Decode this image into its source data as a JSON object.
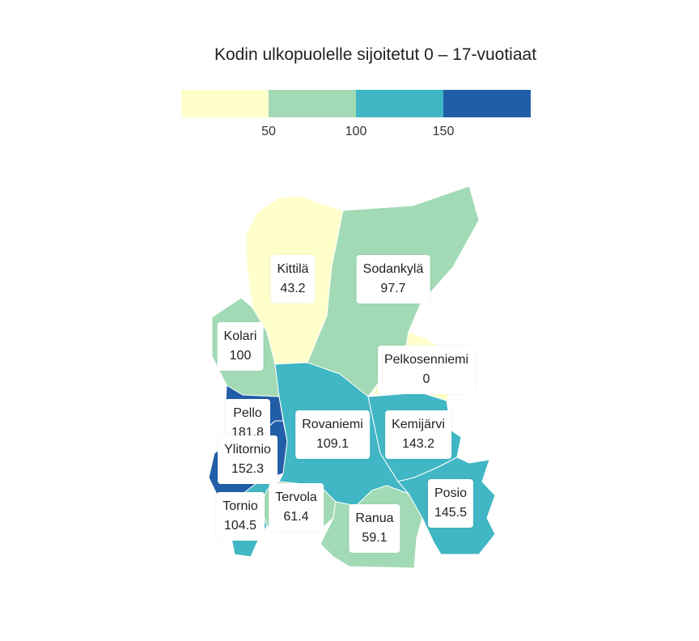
{
  "title": "Kodin ulkopuolelle sijoitetut 0 – 17-vuotiaat",
  "legend": {
    "colors": [
      "#ffffcc",
      "#a1dab4",
      "#41b6c4",
      "#225ea8"
    ],
    "ticks": [
      "50",
      "100",
      "150"
    ]
  },
  "municipalities": [
    {
      "name": "Kittilä",
      "value": "43.2",
      "color": "#ffffcc"
    },
    {
      "name": "Sodankylä",
      "value": "97.7",
      "color": "#a1dab4"
    },
    {
      "name": "Kolari",
      "value": "100",
      "color": "#a1dab4"
    },
    {
      "name": "Pelkosenniemi",
      "value": "0",
      "color": "#ffffcc"
    },
    {
      "name": "Pello",
      "value": "181.8",
      "color": "#225ea8"
    },
    {
      "name": "Ylitornio",
      "value": "152.3",
      "color": "#225ea8"
    },
    {
      "name": "Rovaniemi",
      "value": "109.1",
      "color": "#41b6c4"
    },
    {
      "name": "Kemijärvi",
      "value": "143.2",
      "color": "#41b6c4"
    },
    {
      "name": "Tervola",
      "value": "61.4",
      "color": "#a1dab4"
    },
    {
      "name": "Tornio",
      "value": "104.5",
      "color": "#41b6c4"
    },
    {
      "name": "Ranua",
      "value": "59.1",
      "color": "#a1dab4"
    },
    {
      "name": "Posio",
      "value": "145.5",
      "color": "#41b6c4"
    }
  ]
}
